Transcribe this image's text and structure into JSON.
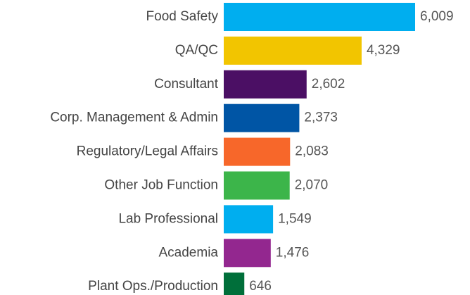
{
  "chart_data": {
    "type": "bar",
    "orientation": "horizontal",
    "categories": [
      "Food Safety",
      "QA/QC",
      "Consultant",
      "Corp. Management & Admin",
      "Regulatory/Legal Affairs",
      "Other Job Function",
      "Lab Professional",
      "Academia",
      "Plant Ops./Production"
    ],
    "values": [
      6009,
      4329,
      2602,
      2373,
      2083,
      2070,
      1549,
      1476,
      646
    ],
    "value_labels": [
      "6,009",
      "4,329",
      "2,602",
      "2,373",
      "2,083",
      "2,070",
      "1,549",
      "1,476",
      "646"
    ],
    "colors": [
      "#00aeef",
      "#f2c500",
      "#4b0f64",
      "#0055a5",
      "#f7672a",
      "#3cb54a",
      "#00aeef",
      "#93278f",
      "#006f3a"
    ]
  }
}
